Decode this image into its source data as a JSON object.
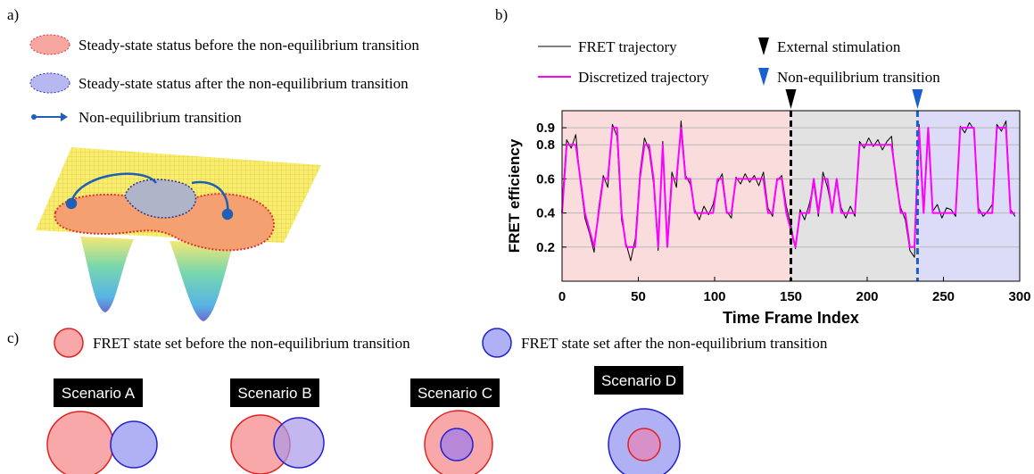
{
  "panel_a": {
    "label": "a)",
    "legend": [
      "Steady-state status before the non-equilibrium transition",
      "Steady-state status after the non-equilibrium transition",
      "Non-equilibrium transition"
    ]
  },
  "chart_data": {
    "type": "line",
    "panel_label": "b)",
    "y_label": "FRET efficiency",
    "x_label": "Time Frame Index",
    "x": [
      0,
      3,
      6,
      9,
      12,
      15,
      18,
      21,
      24,
      27,
      30,
      33,
      36,
      39,
      42,
      45,
      48,
      51,
      54,
      57,
      60,
      63,
      66,
      69,
      72,
      75,
      78,
      81,
      84,
      87,
      90,
      93,
      96,
      99,
      102,
      105,
      108,
      111,
      114,
      117,
      120,
      123,
      126,
      129,
      132,
      135,
      138,
      141,
      144,
      147,
      150,
      153,
      156,
      159,
      162,
      165,
      168,
      171,
      174,
      177,
      180,
      183,
      186,
      189,
      192,
      195,
      198,
      201,
      204,
      207,
      210,
      213,
      216,
      219,
      222,
      225,
      228,
      231,
      234,
      237,
      240,
      243,
      246,
      249,
      252,
      255,
      258,
      261,
      264,
      267,
      270,
      273,
      276,
      279,
      282,
      285,
      288,
      291,
      294,
      297
    ],
    "series": [
      {
        "name": "FRET trajectory",
        "color": "#000000",
        "width": 1,
        "values": [
          0.45,
          0.83,
          0.78,
          0.86,
          0.58,
          0.37,
          0.28,
          0.17,
          0.43,
          0.62,
          0.55,
          0.92,
          0.85,
          0.36,
          0.22,
          0.12,
          0.25,
          0.63,
          0.84,
          0.77,
          0.57,
          0.18,
          0.82,
          0.24,
          0.64,
          0.55,
          0.94,
          0.62,
          0.57,
          0.42,
          0.36,
          0.44,
          0.39,
          0.45,
          0.58,
          0.63,
          0.41,
          0.37,
          0.61,
          0.57,
          0.63,
          0.58,
          0.62,
          0.56,
          0.64,
          0.43,
          0.38,
          0.59,
          0.62,
          0.44,
          0.33,
          0.19,
          0.42,
          0.36,
          0.45,
          0.57,
          0.38,
          0.64,
          0.55,
          0.41,
          0.58,
          0.43,
          0.37,
          0.44,
          0.38,
          0.82,
          0.78,
          0.84,
          0.79,
          0.83,
          0.77,
          0.82,
          0.85,
          0.57,
          0.43,
          0.36,
          0.18,
          0.14,
          0.92,
          0.44,
          0.88,
          0.41,
          0.45,
          0.37,
          0.43,
          0.42,
          0.38,
          0.91,
          0.87,
          0.93,
          0.89,
          0.43,
          0.38,
          0.41,
          0.45,
          0.92,
          0.88,
          0.94,
          0.42,
          0.38
        ]
      },
      {
        "name": "Discretized trajectory",
        "color": "#ff00ff",
        "width": 2,
        "values": [
          0.4,
          0.8,
          0.8,
          0.8,
          0.6,
          0.4,
          0.3,
          0.2,
          0.4,
          0.6,
          0.6,
          0.9,
          0.9,
          0.4,
          0.2,
          0.2,
          0.2,
          0.6,
          0.8,
          0.8,
          0.6,
          0.2,
          0.8,
          0.2,
          0.6,
          0.6,
          0.9,
          0.6,
          0.6,
          0.4,
          0.4,
          0.4,
          0.4,
          0.4,
          0.6,
          0.6,
          0.4,
          0.4,
          0.6,
          0.6,
          0.6,
          0.6,
          0.6,
          0.6,
          0.6,
          0.4,
          0.4,
          0.6,
          0.6,
          0.4,
          0.3,
          0.2,
          0.4,
          0.4,
          0.4,
          0.6,
          0.4,
          0.6,
          0.6,
          0.4,
          0.6,
          0.4,
          0.4,
          0.4,
          0.4,
          0.8,
          0.8,
          0.8,
          0.8,
          0.8,
          0.8,
          0.8,
          0.8,
          0.6,
          0.4,
          0.4,
          0.2,
          0.2,
          0.9,
          0.4,
          0.9,
          0.4,
          0.4,
          0.4,
          0.4,
          0.4,
          0.4,
          0.9,
          0.9,
          0.9,
          0.9,
          0.4,
          0.4,
          0.4,
          0.4,
          0.9,
          0.9,
          0.9,
          0.4,
          0.4
        ]
      }
    ],
    "regions": [
      {
        "start": 0,
        "end": 150,
        "color": "#fadcdc"
      },
      {
        "start": 150,
        "end": 233,
        "color": "#e2e2e2"
      },
      {
        "start": 233,
        "end": 300,
        "color": "#dcdcf8"
      }
    ],
    "markers": [
      {
        "x": 150,
        "name": "External stimulation",
        "color": "#000000"
      },
      {
        "x": 233,
        "name": "Non-equilibrium transition",
        "color": "#1a5fd0"
      }
    ],
    "xlim": [
      0,
      300
    ],
    "xticks": [
      0,
      50,
      100,
      150,
      200,
      250,
      300
    ],
    "ylim": [
      0,
      1
    ],
    "yticks": [
      0.2,
      0.4,
      0.6,
      0.8,
      0.9
    ],
    "grid": true
  },
  "panel_c": {
    "label": "c)",
    "legend": [
      "FRET state set before the non-equilibrium transition",
      "FRET state set after the non-equilibrium transition"
    ],
    "scenarios": [
      "Scenario A",
      "Scenario B",
      "Scenario C",
      "Scenario D"
    ]
  }
}
